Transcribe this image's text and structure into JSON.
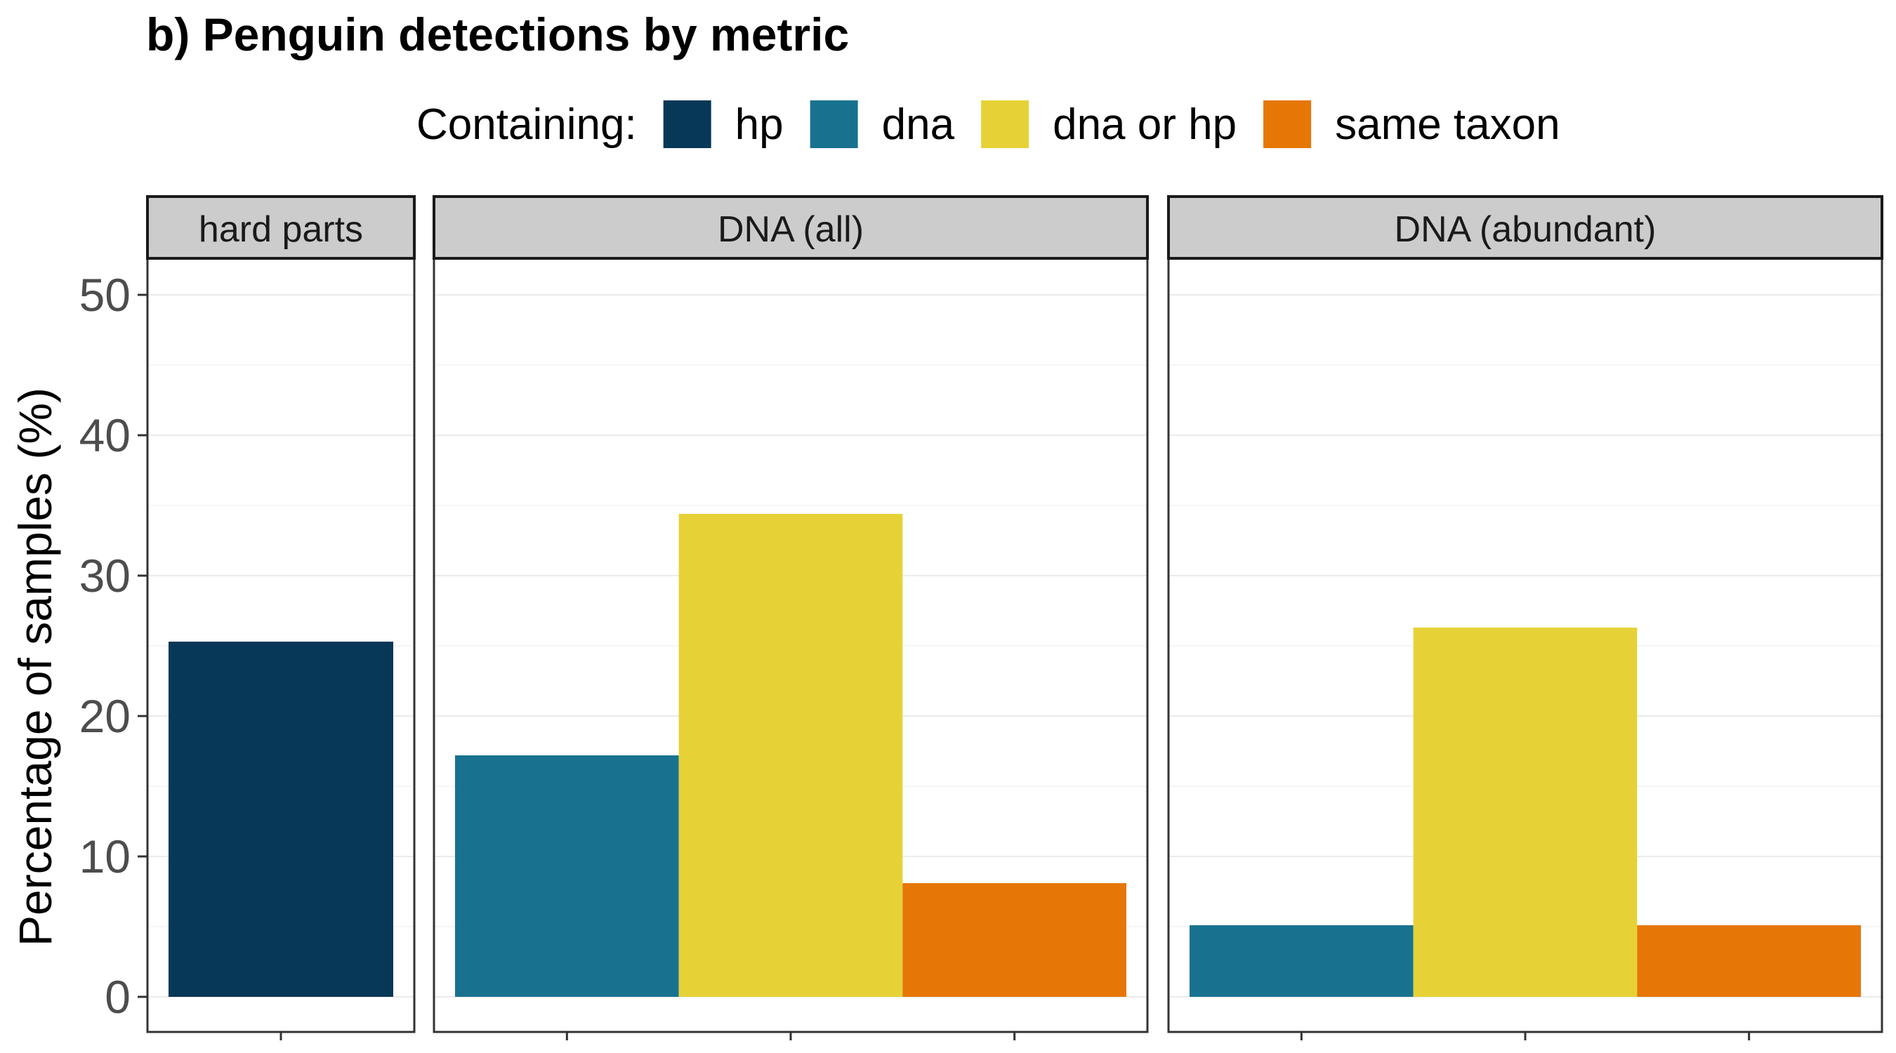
{
  "chart_data": {
    "type": "bar",
    "title": "b) Penguin detections by metric",
    "ylabel": "Percentage of samples (%)",
    "xlabel": "",
    "ylim": [
      0,
      52.5
    ],
    "yticks": [
      0,
      10,
      20,
      30,
      40,
      50
    ],
    "grid": true,
    "legend": {
      "title": "Containing:",
      "placement": "top",
      "entries": [
        {
          "name": "hp",
          "color": "#083857"
        },
        {
          "name": "dna",
          "color": "#18728f"
        },
        {
          "name": "dna or hp",
          "color": "#e6d237"
        },
        {
          "name": "same taxon",
          "color": "#e67707"
        }
      ]
    },
    "facets": [
      {
        "label": "hard parts",
        "bars": [
          {
            "series": "hp",
            "value": 25.3
          }
        ]
      },
      {
        "label": "DNA (all)",
        "bars": [
          {
            "series": "dna",
            "value": 17.2
          },
          {
            "series": "dna or hp",
            "value": 34.4
          },
          {
            "series": "same taxon",
            "value": 8.1
          }
        ]
      },
      {
        "label": "DNA (abundant)",
        "bars": [
          {
            "series": "dna",
            "value": 5.1
          },
          {
            "series": "dna or hp",
            "value": 26.3
          },
          {
            "series": "same taxon",
            "value": 5.1
          }
        ]
      }
    ]
  }
}
